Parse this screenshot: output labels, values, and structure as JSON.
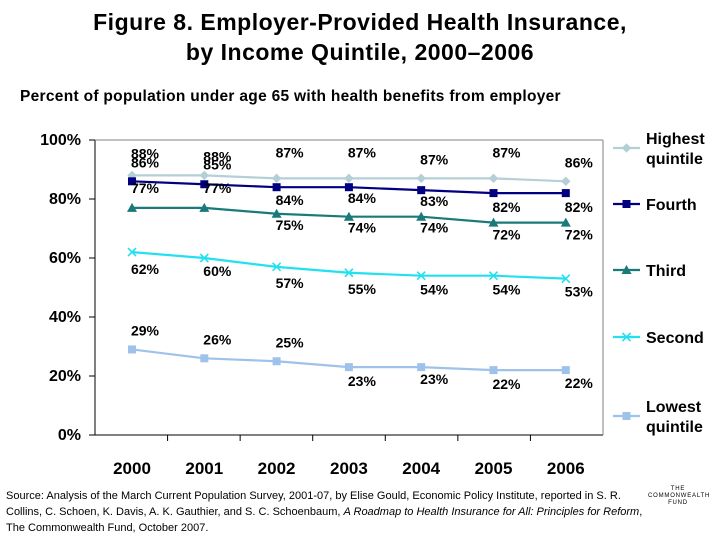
{
  "header": {
    "title_line1": "Figure 8. Employer-Provided Health Insurance,",
    "title_line2": "by Income Quintile, 2000–2006",
    "subtitle": "Percent of population under age 65 with health benefits from employer"
  },
  "chart_data": {
    "type": "line",
    "title": "Figure 8. Employer-Provided Health Insurance, by Income Quintile, 2000–2006",
    "subtitle": "Percent of population under age 65 with health benefits from employer",
    "xlabel": "",
    "ylabel": "",
    "ylim": [
      0,
      100
    ],
    "y_ticks": [
      "0%",
      "20%",
      "40%",
      "60%",
      "80%",
      "100%"
    ],
    "y_tick_values": [
      0,
      20,
      40,
      60,
      80,
      100
    ],
    "categories": [
      "2000",
      "2001",
      "2002",
      "2003",
      "2004",
      "2005",
      "2006"
    ],
    "grid": false,
    "legend_position": "right",
    "series": [
      {
        "name": "Highest quintile",
        "legend_lines": [
          "Highest",
          "quintile"
        ],
        "marker": "diamond",
        "color": "#b4cfd6",
        "values": [
          88,
          88,
          87,
          87,
          87,
          87,
          86
        ],
        "labels": [
          "88%",
          "88%",
          "87%",
          "87%",
          "87%",
          "87%",
          "86%"
        ]
      },
      {
        "name": "Fourth",
        "legend_lines": [
          "Fourth"
        ],
        "marker": "square",
        "color": "#000080",
        "values": [
          86,
          85,
          84,
          84,
          83,
          82,
          82
        ],
        "labels": [
          "86%",
          "85%",
          "84%",
          "84%",
          "83%",
          "82%",
          "82%"
        ]
      },
      {
        "name": "Third",
        "legend_lines": [
          "Third"
        ],
        "marker": "triangle",
        "color": "#1a7a7a",
        "values": [
          77,
          77,
          75,
          74,
          74,
          72,
          72
        ],
        "labels": [
          "77%",
          "77%",
          "75%",
          "74%",
          "74%",
          "72%",
          "72%"
        ]
      },
      {
        "name": "Second",
        "legend_lines": [
          "Second"
        ],
        "marker": "x",
        "color": "#22e0f0",
        "values": [
          62,
          60,
          57,
          55,
          54,
          54,
          53
        ],
        "labels": [
          "62%",
          "60%",
          "57%",
          "55%",
          "54%",
          "54%",
          "53%"
        ]
      },
      {
        "name": "Lowest quintile",
        "legend_lines": [
          "Lowest",
          "quintile"
        ],
        "marker": "square",
        "color": "#9fc2ea",
        "values": [
          29,
          26,
          25,
          23,
          23,
          22,
          22
        ],
        "labels": [
          "29%",
          "26%",
          "25%",
          "23%",
          "23%",
          "22%",
          "22%"
        ]
      }
    ]
  },
  "footer": {
    "source_plain": "Source: Analysis of the March Current Population Survey, 2001-07, by Elise Gould, Economic Policy Institute, reported in S. R. Collins, C. Schoen, K. Davis, A. K. Gauthier, and S. C. Schoenbaum, ",
    "source_italic": "A Roadmap to Health Insurance for All: Principles for Reform",
    "source_end": ", The Commonwealth Fund, October 2007.",
    "logo_lines": [
      "THE",
      "COMMONWEALTH",
      "FUND"
    ]
  }
}
